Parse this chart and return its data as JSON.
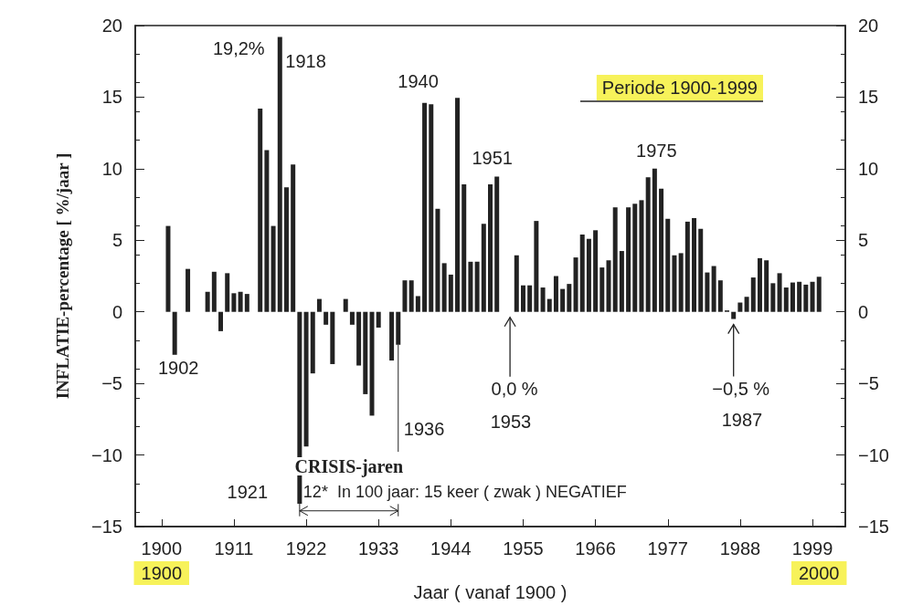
{
  "chart_data": {
    "type": "bar",
    "subtitle": "Periode 1900-1999",
    "xlabel": "Jaar ( vanaf 1900 )",
    "ylabel": "INFLATIE-percentage [ %/jaar ]",
    "x": [
      1901,
      1902,
      1903,
      1904,
      1905,
      1906,
      1907,
      1908,
      1909,
      1910,
      1911,
      1912,
      1913,
      1914,
      1915,
      1916,
      1917,
      1918,
      1919,
      1920,
      1921,
      1922,
      1923,
      1924,
      1925,
      1926,
      1927,
      1928,
      1929,
      1930,
      1931,
      1932,
      1933,
      1934,
      1935,
      1936,
      1937,
      1938,
      1939,
      1940,
      1941,
      1942,
      1943,
      1944,
      1945,
      1946,
      1947,
      1948,
      1949,
      1950,
      1951,
      1952,
      1953,
      1954,
      1955,
      1956,
      1957,
      1958,
      1959,
      1960,
      1961,
      1962,
      1963,
      1964,
      1965,
      1966,
      1967,
      1968,
      1969,
      1970,
      1971,
      1972,
      1973,
      1974,
      1975,
      1976,
      1977,
      1978,
      1979,
      1980,
      1981,
      1982,
      1983,
      1984,
      1985,
      1986,
      1987,
      1988,
      1989,
      1990,
      1991,
      1992,
      1993,
      1994,
      1995,
      1996,
      1997,
      1998,
      1999,
      2000
    ],
    "series": [
      {
        "color": "#222222",
        "values": [
          6.0,
          -3.0,
          null,
          3.0,
          null,
          null,
          1.4,
          2.8,
          -1.35,
          2.7,
          1.3,
          1.4,
          1.25,
          null,
          14.2,
          11.3,
          6.0,
          19.2,
          8.7,
          10.3,
          -13.4,
          -9.4,
          -4.3,
          0.9,
          -0.9,
          -3.65,
          null,
          0.9,
          -0.9,
          -3.75,
          -5.75,
          -7.25,
          -1.1,
          null,
          -3.4,
          -2.3,
          2.2,
          2.2,
          1.1,
          14.6,
          14.5,
          7.2,
          3.4,
          2.6,
          14.95,
          8.9,
          3.5,
          3.5,
          6.15,
          8.9,
          9.45,
          null,
          0.0,
          3.95,
          1.85,
          1.85,
          6.35,
          1.7,
          0.9,
          2.5,
          1.6,
          1.95,
          3.8,
          5.4,
          5.1,
          5.7,
          3.1,
          3.6,
          7.3,
          4.25,
          7.3,
          7.55,
          7.8,
          9.4,
          10.0,
          8.6,
          6.5,
          3.95,
          4.1,
          6.3,
          6.55,
          5.8,
          2.75,
          3.2,
          2.2,
          0.1,
          -0.5,
          0.65,
          1.05,
          2.4,
          3.75,
          3.6,
          2.0,
          2.7,
          1.7,
          2.05,
          2.1,
          1.9,
          2.1,
          2.45
        ]
      }
    ],
    "xlim": [
      1896,
      2004
    ],
    "xticks": [
      1900,
      1911,
      1922,
      1933,
      1944,
      1955,
      1966,
      1977,
      1988,
      1999
    ],
    "x2lim": [
      1896,
      2004
    ],
    "x2ticks": [
      1900,
      2000
    ],
    "ylim": [
      -15,
      20
    ],
    "yticks": [
      -15,
      -10,
      -5,
      0,
      5,
      10,
      15,
      20
    ],
    "y2lim": [
      -15,
      20
    ],
    "y2ticks": [
      -15,
      -10,
      -5,
      0,
      5,
      10,
      15,
      20
    ],
    "grid": false,
    "annotations": [
      {
        "text": "19,2%",
        "x": 1918,
        "y": 19.2
      },
      {
        "text": "1918",
        "x": 1918,
        "y": 19.2
      },
      {
        "text": "1902",
        "x": 1902,
        "y": -3.0
      },
      {
        "text": "1921",
        "x": 1921,
        "y": -13.4
      },
      {
        "text": "1936",
        "x": 1936,
        "y": -2.3
      },
      {
        "text": "1940",
        "x": 1940,
        "y": 14.6
      },
      {
        "text": "1951",
        "x": 1951,
        "y": 9.45
      },
      {
        "text": "0,0 %",
        "x": 1953,
        "y": 0.0
      },
      "1953",
      {
        "text": "1975",
        "x": 1975,
        "y": 10.0
      },
      {
        "text": "−0,5 %",
        "x": 1987,
        "y": -0.5
      },
      "1987",
      "CRISIS-jaren",
      "12*  In 100 jaar: 15 keer ( zwak ) NEGATIEF"
    ]
  }
}
